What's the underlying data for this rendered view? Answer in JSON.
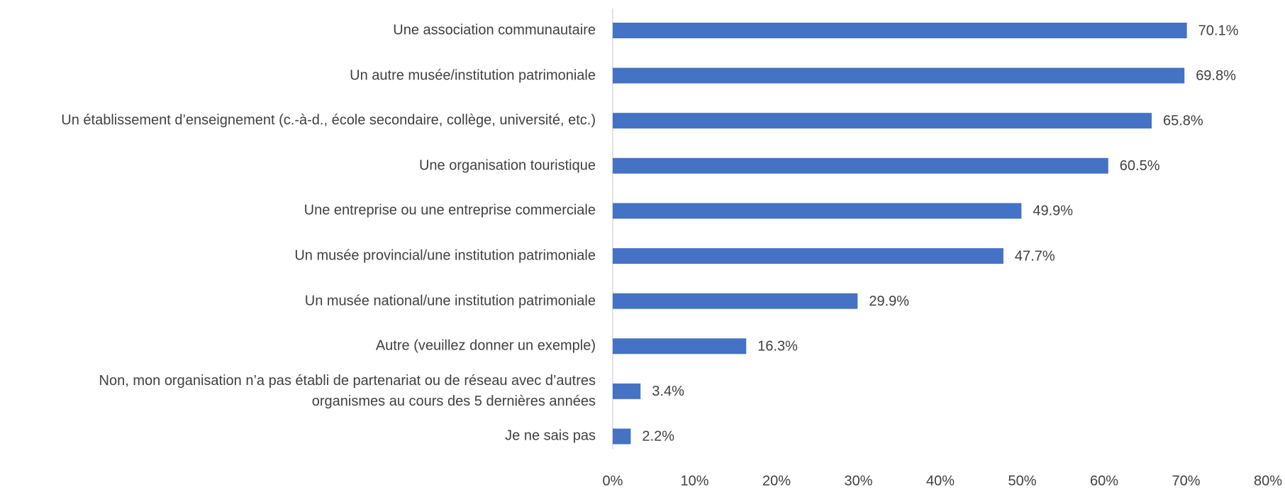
{
  "chart_data": {
    "type": "bar",
    "orientation": "horizontal",
    "categories": [
      "Une association communautaire",
      "Un autre musée/institution patrimoniale",
      "Un établissement d’enseignement (c.-à-d., école secondaire, collège, université, etc.)",
      "Une organisation touristique",
      "Une entreprise ou une entreprise commerciale",
      "Un musée provincial/une institution patrimoniale",
      "Un musée national/une institution patrimoniale",
      "Autre (veuillez donner un exemple)",
      "Non, mon organisation n’a pas établi de partenariat ou de réseau avec d’autres\norganismes au cours des 5 dernières années",
      "Je ne sais pas"
    ],
    "values": [
      70.1,
      69.8,
      65.8,
      60.5,
      49.9,
      47.7,
      29.9,
      16.3,
      3.4,
      2.2
    ],
    "value_labels": [
      "70.1%",
      "69.8%",
      "65.8%",
      "60.5%",
      "49.9%",
      "47.7%",
      "29.9%",
      "16.3%",
      "3.4%",
      "2.2%"
    ],
    "color": "#4472c4",
    "xlim": [
      0,
      80
    ],
    "xticks": [
      {
        "value": 0,
        "label": "0%"
      },
      {
        "value": 10,
        "label": "10%"
      },
      {
        "value": 20,
        "label": "20%"
      },
      {
        "value": 30,
        "label": "30%"
      },
      {
        "value": 40,
        "label": "40%"
      },
      {
        "value": 50,
        "label": "50%"
      },
      {
        "value": 60,
        "label": "60%"
      },
      {
        "value": 70,
        "label": "70%"
      },
      {
        "value": 80,
        "label": "80%"
      }
    ],
    "grid": false
  }
}
